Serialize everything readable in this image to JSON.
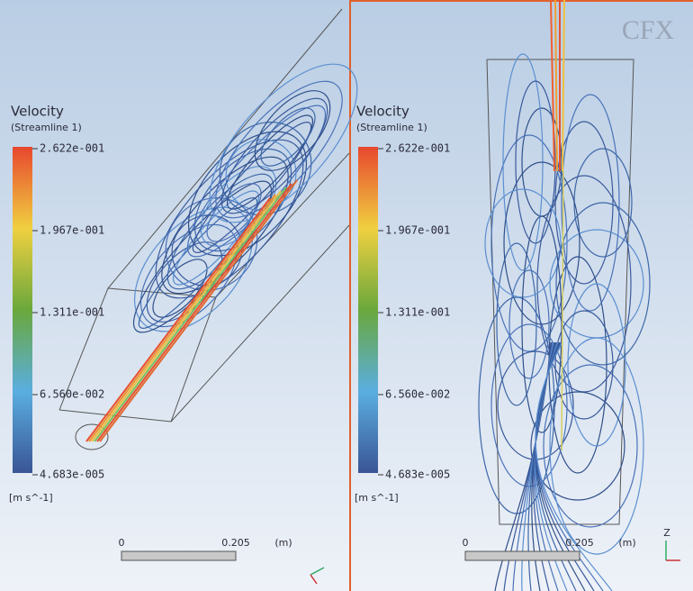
{
  "logo": "CFX",
  "axis_label": "Z",
  "panels": [
    {
      "legend": {
        "title": "Velocity",
        "subtitle": "(Streamline 1)",
        "ticks": [
          "2.622e-001",
          "1.967e-001",
          "1.311e-001",
          "6.560e-002",
          "4.683e-005"
        ],
        "unit": "[m s^-1]"
      },
      "scale": {
        "start": "0",
        "end": "0.205",
        "unit": "(m)"
      }
    },
    {
      "legend": {
        "title": "Velocity",
        "subtitle": "(Streamline 1)",
        "ticks": [
          "2.622e-001",
          "1.967e-001",
          "1.311e-001",
          "6.560e-002",
          "4.683e-005"
        ],
        "unit": "[m s^-1]"
      },
      "scale": {
        "start": "0",
        "end": "0.205",
        "unit": "(m)"
      }
    }
  ]
}
